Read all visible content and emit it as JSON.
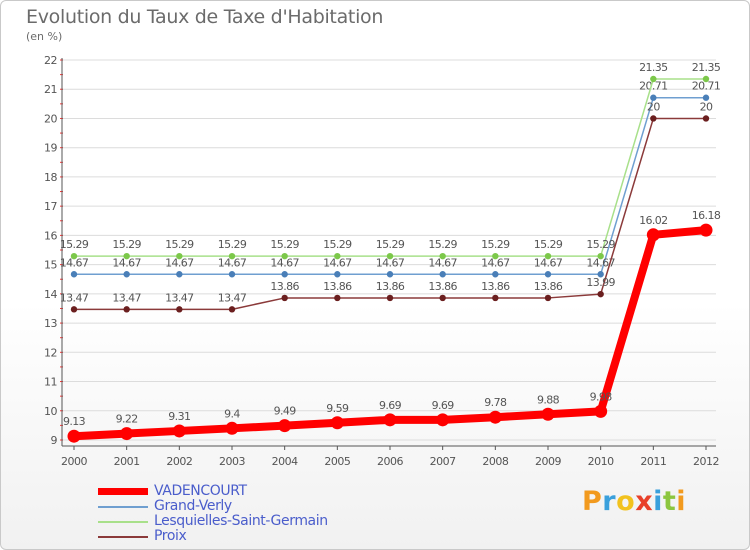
{
  "header": {
    "title": "Evolution du Taux de Taxe d'Habitation",
    "unit": "(en %)"
  },
  "chart_data": {
    "type": "line",
    "title": "Evolution du Taux de Taxe d'Habitation",
    "ylabel": "(en %)",
    "xlabel": "",
    "ylim": [
      9,
      22
    ],
    "y_ticks": [
      "9",
      "10",
      "11",
      "12",
      "13",
      "14",
      "15",
      "16",
      "17",
      "18",
      "19",
      "20",
      "21",
      "22"
    ],
    "categories": [
      "2000",
      "2001",
      "2002",
      "2003",
      "2004",
      "2005",
      "2006",
      "2007",
      "2008",
      "2009",
      "2010",
      "2011",
      "2012"
    ],
    "grid": "horizontal",
    "series": [
      {
        "name": "VADENCOURT",
        "color": "#ff0000",
        "emphasis": true,
        "values": [
          9.13,
          9.22,
          9.31,
          9.4,
          9.49,
          9.59,
          9.69,
          9.69,
          9.78,
          9.88,
          9.98,
          16.02,
          16.18
        ],
        "labels": [
          "9.13",
          "9.22",
          "9.31",
          "9.4",
          "9.49",
          "9.59",
          "9.69",
          "9.69",
          "9.78",
          "9.88",
          "9.98",
          "16.02",
          "16.18"
        ]
      },
      {
        "name": "Grand-Verly",
        "color": "#6f9fd0",
        "marker_color": "#4a7fb8",
        "values": [
          14.67,
          14.67,
          14.67,
          14.67,
          14.67,
          14.67,
          14.67,
          14.67,
          14.67,
          14.67,
          14.67,
          20.71,
          20.71
        ],
        "labels": [
          "14.67",
          "14.67",
          "14.67",
          "14.67",
          "14.67",
          "14.67",
          "14.67",
          "14.67",
          "14.67",
          "14.67",
          "14.67",
          "20.71",
          "20.71"
        ]
      },
      {
        "name": "Lesquielles-Saint-Germain",
        "color": "#a8e08a",
        "marker_color": "#7cc84a",
        "values": [
          15.29,
          15.29,
          15.29,
          15.29,
          15.29,
          15.29,
          15.29,
          15.29,
          15.29,
          15.29,
          15.29,
          21.35,
          21.35
        ],
        "labels": [
          "15.29",
          "15.29",
          "15.29",
          "15.29",
          "15.29",
          "15.29",
          "15.29",
          "15.29",
          "15.29",
          "15.29",
          "15.29",
          "21.35",
          "21.35"
        ]
      },
      {
        "name": "Proix",
        "color": "#8b3a3a",
        "marker_color": "#6b1f1f",
        "values": [
          13.47,
          13.47,
          13.47,
          13.47,
          13.86,
          13.86,
          13.86,
          13.86,
          13.86,
          13.86,
          13.99,
          20.0,
          20.0
        ],
        "labels": [
          "13.47",
          "13.47",
          "13.47",
          "13.47",
          "13.86",
          "13.86",
          "13.86",
          "13.86",
          "13.86",
          "13.86",
          "13.99",
          "20",
          "20"
        ]
      }
    ]
  },
  "legend": {
    "items": [
      "VADENCOURT",
      "Grand-Verly",
      "Lesquielles-Saint-Germain",
      "Proix"
    ]
  },
  "logo": {
    "letters": [
      "P",
      "r",
      "o",
      "x",
      "i",
      "t",
      "i"
    ],
    "colors": [
      "#f29a1e",
      "#3aa0dc",
      "#f2c21e",
      "#e8402a",
      "#3aa0dc",
      "#8cc63f",
      "#f29a1e"
    ]
  }
}
